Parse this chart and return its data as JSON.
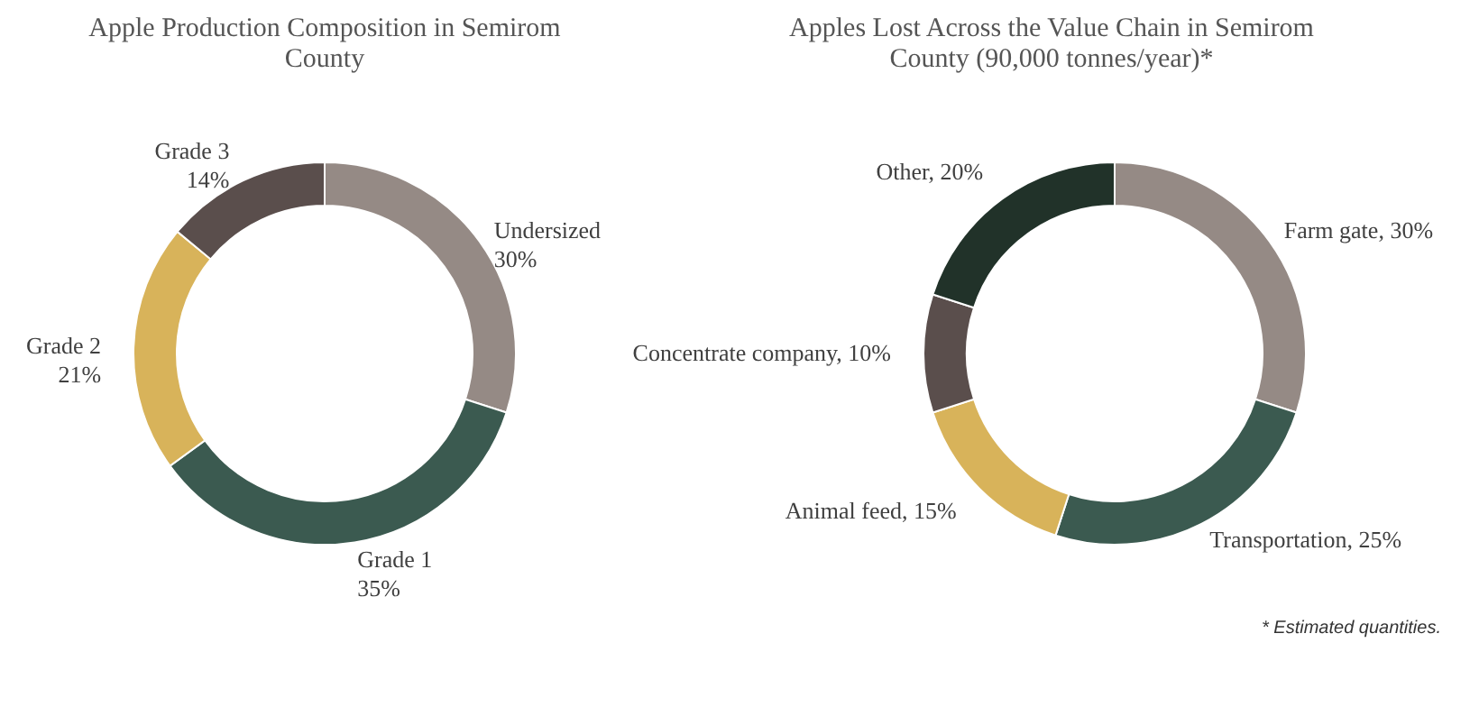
{
  "chart_data": [
    {
      "type": "donut",
      "title": "Apple Production Composition in Semirom County",
      "categories": [
        "Undersized",
        "Grade 1",
        "Grade 2",
        "Grade 3"
      ],
      "values": [
        30,
        35,
        21,
        14
      ],
      "value_labels": [
        "30%",
        "35%",
        "21%",
        "14%"
      ],
      "colors": [
        "#958a85",
        "#3b5a50",
        "#d8b35a",
        "#5a4e4c"
      ],
      "legend": false
    },
    {
      "type": "donut",
      "title": "Apples Lost Across the Value Chain in Semirom County (90,000 tonnes/year)*",
      "categories": [
        "Farm gate",
        "Transportation",
        "Animal feed",
        "Concentrate company",
        "Other"
      ],
      "values": [
        30,
        25,
        15,
        10,
        20
      ],
      "value_labels": [
        "30%",
        "25%",
        "15%",
        "10%",
        "20%"
      ],
      "colors": [
        "#958a85",
        "#3b5a50",
        "#d8b35a",
        "#5a4e4c",
        "#213229"
      ],
      "legend": false,
      "annotations": [
        "* Estimated quantities."
      ]
    }
  ]
}
